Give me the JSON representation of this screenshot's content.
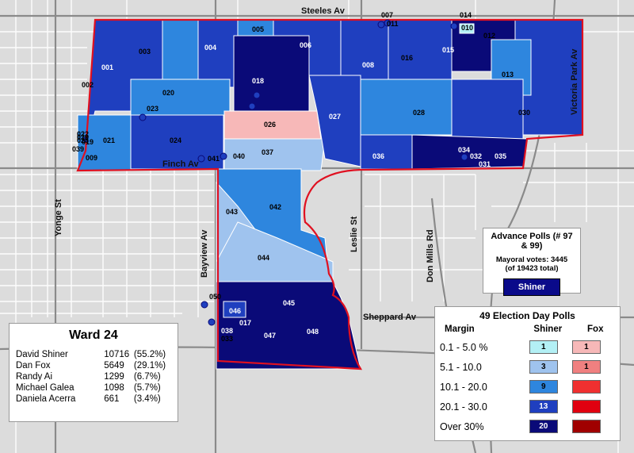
{
  "streets": {
    "steeles": "Steeles Av",
    "finch": "Finch Av",
    "sheppard": "Sheppard Av",
    "yonge": "Yonge St",
    "bayview": "Bayview Av",
    "leslie": "Leslie St",
    "don_mills": "Don Mills Rd",
    "victoria_park": "Victoria Park Av"
  },
  "polls": [
    "001",
    "002",
    "003",
    "004",
    "005",
    "006",
    "007",
    "008",
    "009",
    "010",
    "011",
    "012",
    "013",
    "014",
    "015",
    "016",
    "017",
    "018",
    "019",
    "020",
    "021",
    "022",
    "023",
    "024",
    "025",
    "026",
    "027",
    "028",
    "029",
    "030",
    "031",
    "032",
    "033",
    "034",
    "035",
    "036",
    "037",
    "038",
    "039",
    "040",
    "041",
    "042",
    "043",
    "044",
    "045",
    "046",
    "047",
    "048",
    "050"
  ],
  "ward": {
    "title": "Ward 24",
    "candidates": [
      {
        "name": "David Shiner",
        "votes": "10716",
        "pct": "(55.2%)"
      },
      {
        "name": "Dan Fox",
        "votes": "5649",
        "pct": "(29.1%)"
      },
      {
        "name": "Randy Ai",
        "votes": "1299",
        "pct": "(6.7%)"
      },
      {
        "name": "Michael Galea",
        "votes": "1098",
        "pct": "(5.7%)"
      },
      {
        "name": "Daniela Acerra",
        "votes": "661",
        "pct": "(3.4%)"
      }
    ]
  },
  "advance": {
    "title": "Advance Polls (# 97 & 99)",
    "votes_line": "Mayoral votes: 3445",
    "total_line": "(of 19423 total)",
    "winner": "Shiner"
  },
  "legend": {
    "title": "49 Election Day Polls",
    "col_margin": "Margin",
    "col_a": "Shiner",
    "col_b": "Fox",
    "rows": [
      {
        "label": "0.1 - 5.0 %",
        "a": "1",
        "b": "1",
        "a_color": "#b3f0f5",
        "b_color": "#f7b8b8"
      },
      {
        "label": "5.1 - 10.0",
        "a": "3",
        "b": "1",
        "a_color": "#9fc3ee",
        "b_color": "#f08080"
      },
      {
        "label": "10.1 - 20.0",
        "a": "9",
        "b": "",
        "a_color": "#2e86de",
        "b_color": "#f03030"
      },
      {
        "label": "20.1 - 30.0",
        "a": "13",
        "b": "",
        "a_color": "#1f3fbf",
        "b_color": "#e00010"
      },
      {
        "label": "Over 30%",
        "a": "20",
        "b": "",
        "a_color": "#0a0a78",
        "b_color": "#a00000"
      }
    ]
  },
  "colors": {
    "shiner_1": "#b3f0f5",
    "shiner_2": "#9fc3ee",
    "shiner_3": "#2e86de",
    "shiner_4": "#1f3fbf",
    "shiner_5": "#0a0a78",
    "fox_1": "#f7b8b8",
    "ward_border": "#e01020"
  }
}
